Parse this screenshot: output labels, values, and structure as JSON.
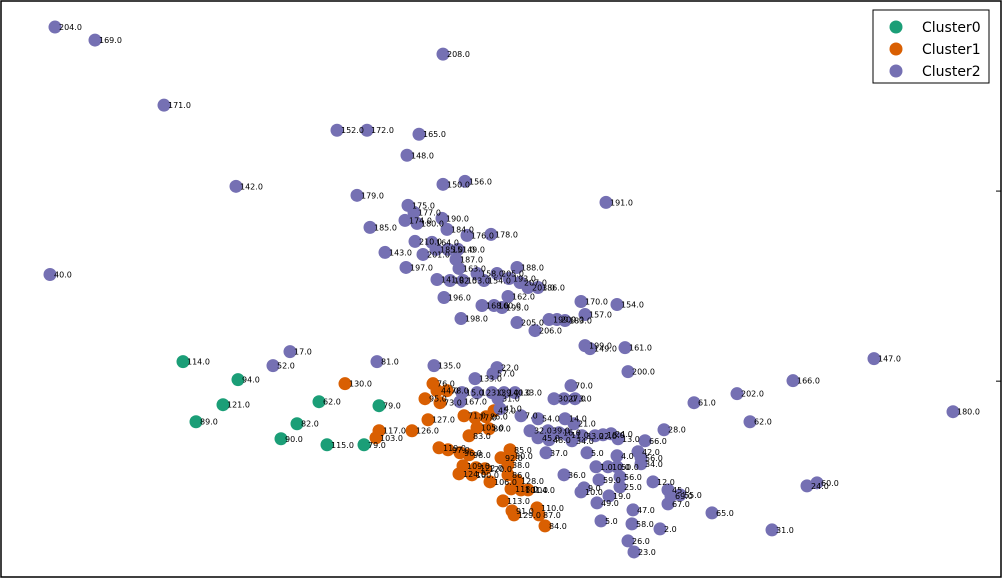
{
  "chart_data": {
    "type": "scatter",
    "title": "",
    "xlabel": "",
    "ylabel": "",
    "xlim": [
      0,
      1000
    ],
    "ylim": [
      0,
      575
    ],
    "grid": false,
    "legend_position": "top-right",
    "series": [
      {
        "name": "Cluster0",
        "color": "#1b9e77",
        "points": [
          {
            "x": 182,
            "y": 215,
            "label": "114.0"
          },
          {
            "x": 237,
            "y": 197,
            "label": "94.0"
          },
          {
            "x": 222,
            "y": 172,
            "label": "121.0"
          },
          {
            "x": 195,
            "y": 155,
            "label": "89.0"
          },
          {
            "x": 280,
            "y": 138,
            "label": "90.0"
          },
          {
            "x": 296,
            "y": 153,
            "label": "82.0"
          },
          {
            "x": 318,
            "y": 175,
            "label": "62.0"
          },
          {
            "x": 326,
            "y": 132,
            "label": "115.0"
          },
          {
            "x": 363,
            "y": 132,
            "label": "79.0"
          },
          {
            "x": 378,
            "y": 171,
            "label": "79.0"
          }
        ]
      },
      {
        "name": "Cluster1",
        "color": "#d95f02",
        "points": [
          {
            "x": 344,
            "y": 193,
            "label": "130.0"
          },
          {
            "x": 432,
            "y": 193,
            "label": "76.0"
          },
          {
            "x": 436,
            "y": 186,
            "label": "44.0"
          },
          {
            "x": 446,
            "y": 186,
            "label": "78.0"
          },
          {
            "x": 424,
            "y": 178,
            "label": "95.0"
          },
          {
            "x": 439,
            "y": 174,
            "label": "73.0"
          },
          {
            "x": 463,
            "y": 161,
            "label": "71.0"
          },
          {
            "x": 427,
            "y": 157,
            "label": "127.0"
          },
          {
            "x": 474,
            "y": 159,
            "label": "77.0"
          },
          {
            "x": 485,
            "y": 160,
            "label": "86.0"
          },
          {
            "x": 493,
            "y": 166,
            "label": "45.0"
          },
          {
            "x": 476,
            "y": 149,
            "label": "105.0"
          },
          {
            "x": 488,
            "y": 148,
            "label": "80.0"
          },
          {
            "x": 411,
            "y": 146,
            "label": "126.0"
          },
          {
            "x": 378,
            "y": 146,
            "label": "117.0"
          },
          {
            "x": 375,
            "y": 139,
            "label": "103.0"
          },
          {
            "x": 468,
            "y": 141,
            "label": "83.0"
          },
          {
            "x": 438,
            "y": 129,
            "label": "119.0"
          },
          {
            "x": 447,
            "y": 127,
            "label": "97.0"
          },
          {
            "x": 459,
            "y": 124,
            "label": "96.0"
          },
          {
            "x": 468,
            "y": 122,
            "label": "98.0"
          },
          {
            "x": 509,
            "y": 127,
            "label": "85.0"
          },
          {
            "x": 510,
            "y": 121,
            "label": "80.0"
          },
          {
            "x": 500,
            "y": 119,
            "label": "92.0"
          },
          {
            "x": 462,
            "y": 111,
            "label": "109.0"
          },
          {
            "x": 475,
            "y": 109,
            "label": "122.0"
          },
          {
            "x": 484,
            "y": 108,
            "label": "120.0"
          },
          {
            "x": 507,
            "y": 112,
            "label": "38.0"
          },
          {
            "x": 458,
            "y": 103,
            "label": "124.0"
          },
          {
            "x": 471,
            "y": 102,
            "label": "100.0"
          },
          {
            "x": 507,
            "y": 102,
            "label": "86.0"
          },
          {
            "x": 516,
            "y": 96,
            "label": "128.0"
          },
          {
            "x": 489,
            "y": 95,
            "label": "106.0"
          },
          {
            "x": 510,
            "y": 88,
            "label": "118.0"
          },
          {
            "x": 520,
            "y": 87,
            "label": "101.0"
          },
          {
            "x": 527,
            "y": 87,
            "label": "104.0"
          },
          {
            "x": 502,
            "y": 76,
            "label": "113.0"
          },
          {
            "x": 511,
            "y": 66,
            "label": "91.0"
          },
          {
            "x": 536,
            "y": 69,
            "label": "110.0"
          },
          {
            "x": 538,
            "y": 62,
            "label": "87.0"
          },
          {
            "x": 513,
            "y": 62,
            "label": "129.0"
          },
          {
            "x": 544,
            "y": 51,
            "label": "84.0"
          }
        ]
      },
      {
        "name": "Cluster2",
        "color": "#7570b3",
        "points": [
          {
            "x": 54,
            "y": 549,
            "label": "204.0"
          },
          {
            "x": 94,
            "y": 536,
            "label": "169.0"
          },
          {
            "x": 442,
            "y": 522,
            "label": "208.0"
          },
          {
            "x": 163,
            "y": 471,
            "label": "171.0"
          },
          {
            "x": 336,
            "y": 446,
            "label": "152.0"
          },
          {
            "x": 366,
            "y": 446,
            "label": "172.0"
          },
          {
            "x": 418,
            "y": 442,
            "label": "165.0"
          },
          {
            "x": 406,
            "y": 421,
            "label": "148.0"
          },
          {
            "x": 235,
            "y": 390,
            "label": "142.0"
          },
          {
            "x": 442,
            "y": 392,
            "label": "150.0"
          },
          {
            "x": 464,
            "y": 395,
            "label": "156.0"
          },
          {
            "x": 356,
            "y": 381,
            "label": "179.0"
          },
          {
            "x": 605,
            "y": 374,
            "label": "191.0"
          },
          {
            "x": 407,
            "y": 371,
            "label": "175.0"
          },
          {
            "x": 413,
            "y": 364,
            "label": "177.0"
          },
          {
            "x": 404,
            "y": 356,
            "label": "174.0"
          },
          {
            "x": 416,
            "y": 353,
            "label": "180.0"
          },
          {
            "x": 441,
            "y": 358,
            "label": "190.0"
          },
          {
            "x": 369,
            "y": 349,
            "label": "185.0"
          },
          {
            "x": 446,
            "y": 347,
            "label": "184.0"
          },
          {
            "x": 466,
            "y": 341,
            "label": "176.0"
          },
          {
            "x": 490,
            "y": 342,
            "label": "178.0"
          },
          {
            "x": 414,
            "y": 335,
            "label": "210.0"
          },
          {
            "x": 431,
            "y": 334,
            "label": "164.0"
          },
          {
            "x": 435,
            "y": 327,
            "label": "185.0"
          },
          {
            "x": 447,
            "y": 327,
            "label": "151.0"
          },
          {
            "x": 457,
            "y": 327,
            "label": "149.0"
          },
          {
            "x": 384,
            "y": 324,
            "label": "143.0"
          },
          {
            "x": 422,
            "y": 322,
            "label": "201.0"
          },
          {
            "x": 455,
            "y": 317,
            "label": "187.0"
          },
          {
            "x": 49,
            "y": 302,
            "label": "40.0"
          },
          {
            "x": 405,
            "y": 309,
            "label": "197.0"
          },
          {
            "x": 458,
            "y": 308,
            "label": "163.0"
          },
          {
            "x": 476,
            "y": 303,
            "label": "158.0"
          },
          {
            "x": 496,
            "y": 303,
            "label": "205.0"
          },
          {
            "x": 516,
            "y": 309,
            "label": "188.0"
          },
          {
            "x": 436,
            "y": 297,
            "label": "141.0"
          },
          {
            "x": 449,
            "y": 296,
            "label": "182.0"
          },
          {
            "x": 462,
            "y": 296,
            "label": "153.0"
          },
          {
            "x": 483,
            "y": 296,
            "label": "154.0"
          },
          {
            "x": 508,
            "y": 298,
            "label": "193.0"
          },
          {
            "x": 519,
            "y": 294,
            "label": "207.0"
          },
          {
            "x": 527,
            "y": 289,
            "label": "203.0"
          },
          {
            "x": 537,
            "y": 289,
            "label": "186.0"
          },
          {
            "x": 507,
            "y": 280,
            "label": "162.0"
          },
          {
            "x": 443,
            "y": 279,
            "label": "196.0"
          },
          {
            "x": 481,
            "y": 271,
            "label": "168.0"
          },
          {
            "x": 493,
            "y": 271,
            "label": "160.0"
          },
          {
            "x": 501,
            "y": 269,
            "label": "195.0"
          },
          {
            "x": 580,
            "y": 275,
            "label": "170.0"
          },
          {
            "x": 616,
            "y": 272,
            "label": "154.0"
          },
          {
            "x": 584,
            "y": 262,
            "label": "157.0"
          },
          {
            "x": 460,
            "y": 258,
            "label": "198.0"
          },
          {
            "x": 516,
            "y": 254,
            "label": "205.0"
          },
          {
            "x": 548,
            "y": 257,
            "label": "199.0"
          },
          {
            "x": 556,
            "y": 257,
            "label": "209.0"
          },
          {
            "x": 564,
            "y": 256,
            "label": "183.0"
          },
          {
            "x": 534,
            "y": 246,
            "label": "206.0"
          },
          {
            "x": 584,
            "y": 231,
            "label": "199.0"
          },
          {
            "x": 589,
            "y": 228,
            "label": "149.0"
          },
          {
            "x": 624,
            "y": 229,
            "label": "161.0"
          },
          {
            "x": 289,
            "y": 225,
            "label": "17.0"
          },
          {
            "x": 376,
            "y": 215,
            "label": "81.0"
          },
          {
            "x": 272,
            "y": 211,
            "label": "52.0"
          },
          {
            "x": 433,
            "y": 211,
            "label": "135.0"
          },
          {
            "x": 873,
            "y": 218,
            "label": "147.0"
          },
          {
            "x": 496,
            "y": 209,
            "label": "22.0"
          },
          {
            "x": 492,
            "y": 203,
            "label": "57.0"
          },
          {
            "x": 627,
            "y": 205,
            "label": "200.0"
          },
          {
            "x": 474,
            "y": 198,
            "label": "133.0"
          },
          {
            "x": 792,
            "y": 196,
            "label": "166.0"
          },
          {
            "x": 570,
            "y": 191,
            "label": "70.0"
          },
          {
            "x": 736,
            "y": 183,
            "label": "202.0"
          },
          {
            "x": 461,
            "y": 184,
            "label": "15.0"
          },
          {
            "x": 476,
            "y": 184,
            "label": "123.0"
          },
          {
            "x": 491,
            "y": 184,
            "label": "139.0"
          },
          {
            "x": 503,
            "y": 184,
            "label": "140.0"
          },
          {
            "x": 514,
            "y": 184,
            "label": "133.0"
          },
          {
            "x": 497,
            "y": 178,
            "label": "31.0"
          },
          {
            "x": 459,
            "y": 175,
            "label": "167.0"
          },
          {
            "x": 553,
            "y": 178,
            "label": "30.0"
          },
          {
            "x": 563,
            "y": 178,
            "label": "27.0"
          },
          {
            "x": 574,
            "y": 178,
            "label": "3.0"
          },
          {
            "x": 693,
            "y": 174,
            "label": "61.0"
          },
          {
            "x": 499,
            "y": 168,
            "label": "41.0"
          },
          {
            "x": 952,
            "y": 165,
            "label": "180.0"
          },
          {
            "x": 520,
            "y": 161,
            "label": "7.0"
          },
          {
            "x": 537,
            "y": 158,
            "label": "54.0"
          },
          {
            "x": 564,
            "y": 158,
            "label": "14.0"
          },
          {
            "x": 749,
            "y": 155,
            "label": "62.0"
          },
          {
            "x": 573,
            "y": 153,
            "label": "21.0"
          },
          {
            "x": 529,
            "y": 146,
            "label": "32.0"
          },
          {
            "x": 547,
            "y": 146,
            "label": "39.0"
          },
          {
            "x": 558,
            "y": 144,
            "label": "16.0"
          },
          {
            "x": 566,
            "y": 142,
            "label": "11.0"
          },
          {
            "x": 581,
            "y": 141,
            "label": "33.0"
          },
          {
            "x": 594,
            "y": 141,
            "label": "22.0"
          },
          {
            "x": 602,
            "y": 142,
            "label": "18.0"
          },
          {
            "x": 610,
            "y": 143,
            "label": "24.0"
          },
          {
            "x": 617,
            "y": 138,
            "label": "13.0"
          },
          {
            "x": 537,
            "y": 139,
            "label": "45.0"
          },
          {
            "x": 548,
            "y": 137,
            "label": "48.0"
          },
          {
            "x": 571,
            "y": 136,
            "label": "34.0"
          },
          {
            "x": 663,
            "y": 147,
            "label": "28.0"
          },
          {
            "x": 644,
            "y": 136,
            "label": "66.0"
          },
          {
            "x": 545,
            "y": 124,
            "label": "37.0"
          },
          {
            "x": 586,
            "y": 124,
            "label": "5.0"
          },
          {
            "x": 616,
            "y": 121,
            "label": "4.0"
          },
          {
            "x": 637,
            "y": 125,
            "label": "42.0"
          },
          {
            "x": 640,
            "y": 119,
            "label": "56.0"
          },
          {
            "x": 640,
            "y": 113,
            "label": "34.0"
          },
          {
            "x": 595,
            "y": 110,
            "label": "1.0"
          },
          {
            "x": 607,
            "y": 110,
            "label": "10.0"
          },
          {
            "x": 616,
            "y": 110,
            "label": "50.0"
          },
          {
            "x": 563,
            "y": 102,
            "label": "36.0"
          },
          {
            "x": 598,
            "y": 97,
            "label": "59.0"
          },
          {
            "x": 619,
            "y": 100,
            "label": "56.0"
          },
          {
            "x": 652,
            "y": 95,
            "label": "12.0"
          },
          {
            "x": 816,
            "y": 94,
            "label": "60.0"
          },
          {
            "x": 583,
            "y": 89,
            "label": "9.0"
          },
          {
            "x": 580,
            "y": 85,
            "label": "10.0"
          },
          {
            "x": 619,
            "y": 90,
            "label": "25.0"
          },
          {
            "x": 667,
            "y": 87,
            "label": "45.0"
          },
          {
            "x": 670,
            "y": 81,
            "label": "69.0"
          },
          {
            "x": 679,
            "y": 82,
            "label": "55.0"
          },
          {
            "x": 806,
            "y": 91,
            "label": "24.0"
          },
          {
            "x": 608,
            "y": 81,
            "label": "19.0"
          },
          {
            "x": 596,
            "y": 74,
            "label": "49.0"
          },
          {
            "x": 667,
            "y": 73,
            "label": "67.0"
          },
          {
            "x": 632,
            "y": 67,
            "label": "47.0"
          },
          {
            "x": 711,
            "y": 64,
            "label": "65.0"
          },
          {
            "x": 600,
            "y": 56,
            "label": "5.0"
          },
          {
            "x": 631,
            "y": 53,
            "label": "58.0"
          },
          {
            "x": 659,
            "y": 48,
            "label": "2.0"
          },
          {
            "x": 771,
            "y": 47,
            "label": "31.0"
          },
          {
            "x": 627,
            "y": 36,
            "label": "26.0"
          },
          {
            "x": 633,
            "y": 25,
            "label": "23.0"
          }
        ]
      }
    ]
  }
}
